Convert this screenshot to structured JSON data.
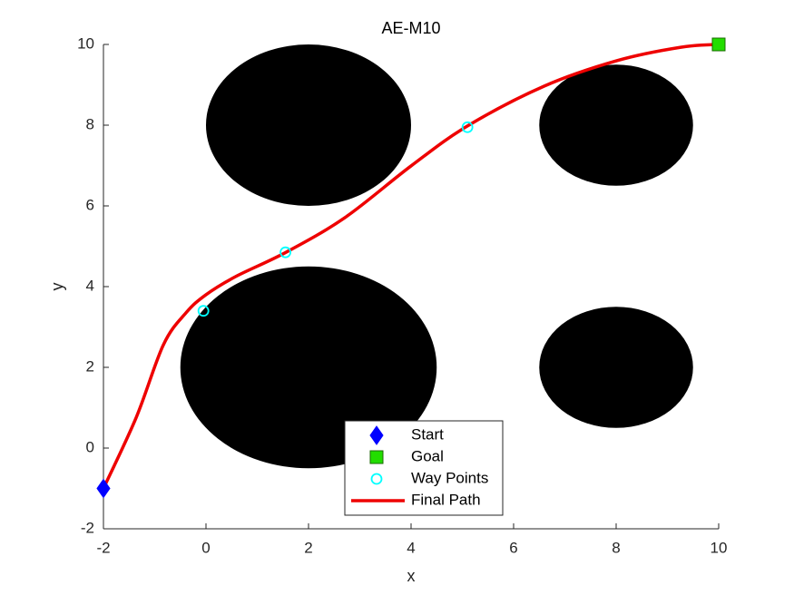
{
  "chart_data": {
    "type": "path",
    "title": "AE-M10",
    "x_label": "x",
    "y_label": "y",
    "xlim": [
      -2,
      10
    ],
    "ylim": [
      -2,
      10
    ],
    "xticks": [
      -2,
      0,
      2,
      4,
      6,
      8,
      10
    ],
    "yticks": [
      -2,
      0,
      2,
      4,
      6,
      8,
      10
    ],
    "legend": "south",
    "obstacles": {
      "color": "#000000",
      "x": [
        2,
        8,
        2,
        8
      ],
      "y": [
        8,
        8,
        2,
        2
      ],
      "r": [
        2,
        1.5,
        2.5,
        1.5
      ]
    },
    "series": [
      {
        "name": "Start",
        "color": "#0000ff",
        "marker": "diamond",
        "x": [
          -2
        ],
        "y": [
          -1
        ]
      },
      {
        "name": "Goal",
        "color": "#22dd00",
        "marker": "square",
        "x": [
          10
        ],
        "y": [
          10
        ]
      },
      {
        "name": "Way Points",
        "color": "#00ffff",
        "marker": "circle",
        "x": [
          -0.05,
          1.55,
          5.1
        ],
        "y": [
          3.4,
          4.85,
          7.95
        ]
      },
      {
        "name": "Final Path",
        "color": "#ee0000",
        "marker": "line",
        "x": [
          -2,
          -1.36,
          -0.83,
          -0.39,
          0,
          0.58,
          1.56,
          2.71,
          4,
          5.1,
          6.6,
          8.02,
          9.26,
          10
        ],
        "y": [
          -1,
          0.76,
          2.56,
          3.35,
          3.8,
          4.25,
          4.85,
          5.71,
          6.99,
          7.98,
          8.97,
          9.6,
          9.93,
          10
        ]
      }
    ]
  }
}
